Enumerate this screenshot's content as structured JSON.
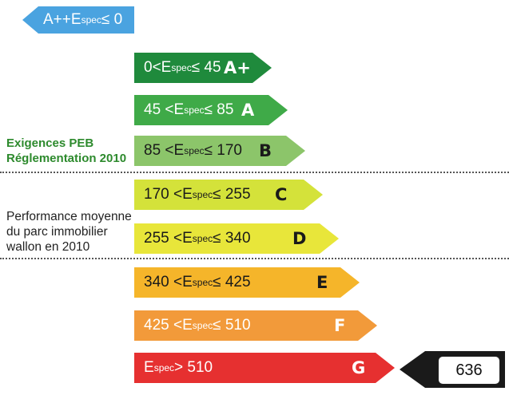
{
  "scale": [
    {
      "id": "app",
      "range": "A++ Espec ≤ 0",
      "range_parts": [
        "A++ ",
        "E",
        "spec",
        " ≤ 0"
      ],
      "letter": "",
      "color": "#4aa3e0",
      "text_color": "#ffffff"
    },
    {
      "id": "ap",
      "range_parts": [
        "0<",
        "E",
        "spec",
        " ≤ 45"
      ],
      "letter": "A+",
      "color": "#1f8a3c",
      "text_color": "#ffffff"
    },
    {
      "id": "a",
      "range_parts": [
        "45 < ",
        "E",
        "spec",
        " ≤ 85"
      ],
      "letter": "A",
      "color": "#3faa48",
      "text_color": "#ffffff"
    },
    {
      "id": "b",
      "range_parts": [
        "85 < ",
        "E",
        "spec",
        " ≤ 170"
      ],
      "letter": "B",
      "color": "#8cc56a",
      "text_color": "#1a1a1a"
    },
    {
      "id": "c",
      "range_parts": [
        "170 < ",
        "E",
        "spec",
        " ≤ 255"
      ],
      "letter": "C",
      "color": "#d4e23a",
      "text_color": "#1a1a1a"
    },
    {
      "id": "d",
      "range_parts": [
        "255 < ",
        "E",
        "spec",
        " ≤ 340"
      ],
      "letter": "D",
      "color": "#e8e63a",
      "text_color": "#1a1a1a"
    },
    {
      "id": "e",
      "range_parts": [
        "340 < ",
        "E",
        "spec",
        " ≤ 425"
      ],
      "letter": "E",
      "color": "#f5b52a",
      "text_color": "#1a1a1a"
    },
    {
      "id": "f",
      "range_parts": [
        "425 < ",
        "E",
        "spec",
        " ≤ 510"
      ],
      "letter": "F",
      "color": "#f29a3a",
      "text_color": "#ffffff"
    },
    {
      "id": "g",
      "range_parts": [
        "",
        "E",
        "spec",
        " > 510"
      ],
      "letter": "G",
      "color": "#e63030",
      "text_color": "#ffffff"
    }
  ],
  "notes": {
    "peb_line1": "Exigences PEB",
    "peb_line2": "Réglementation 2010",
    "parc_line1": "Performance moyenne",
    "parc_line2": "du parc immobilier",
    "parc_line3": "wallon en 2010"
  },
  "indicator": {
    "value": "636",
    "color": "#1a1a1a"
  }
}
